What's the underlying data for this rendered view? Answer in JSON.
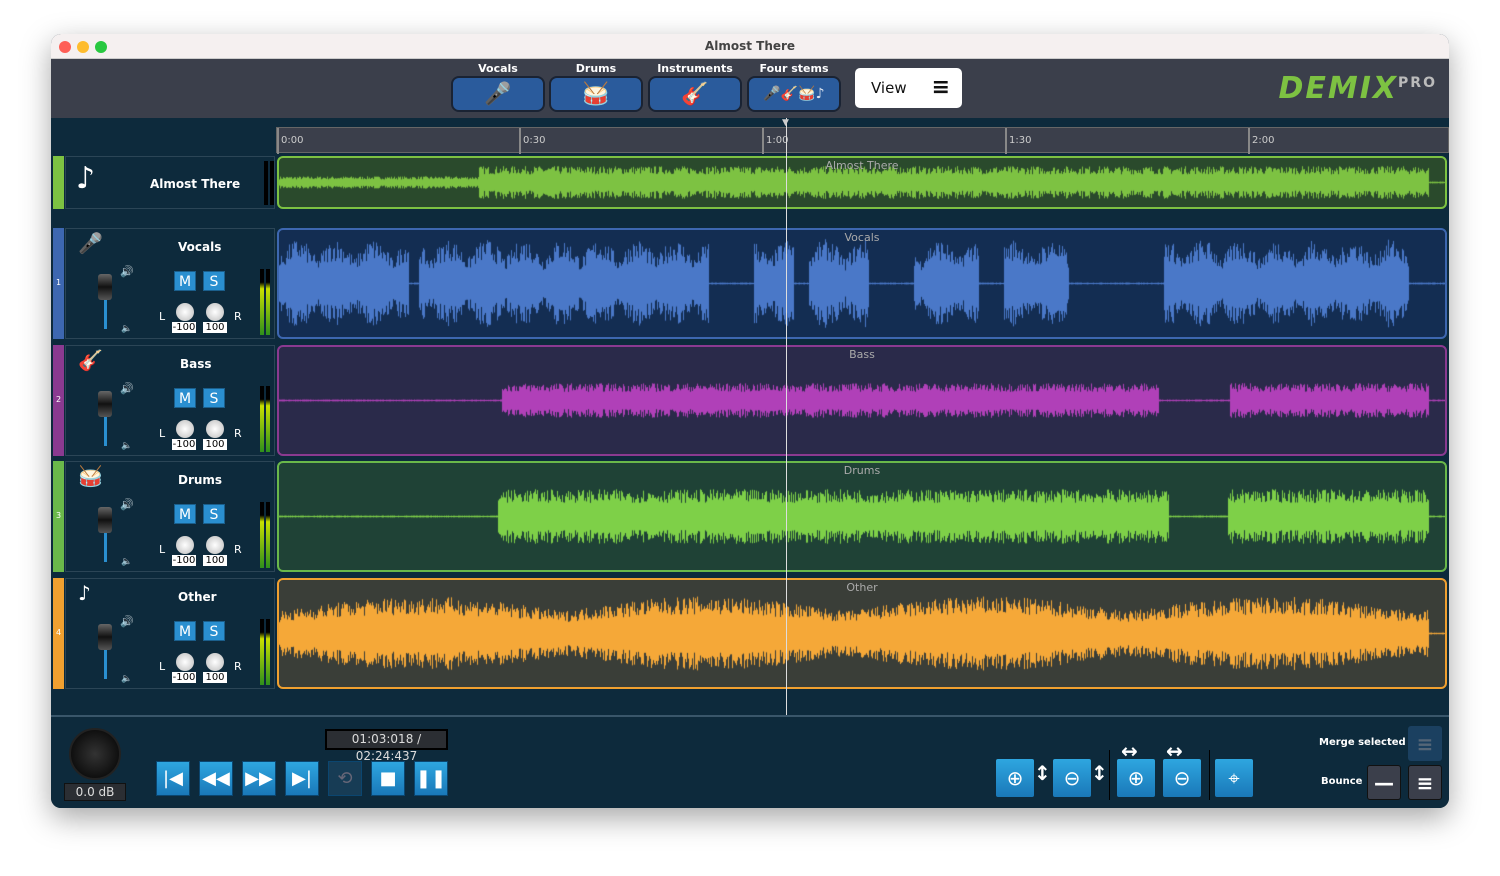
{
  "window": {
    "title": "Almost There"
  },
  "toolbar": {
    "stems": [
      {
        "label": "Vocals",
        "icon": "microphone-icon",
        "glyph": "🎤"
      },
      {
        "label": "Drums",
        "icon": "drum-kit-icon",
        "glyph": "🥁"
      },
      {
        "label": "Instruments",
        "icon": "guitar-icon",
        "glyph": "🎸"
      },
      {
        "label": "Four stems",
        "icon": "four-stems-icon",
        "glyph": "🎤🎸🥁♪"
      }
    ],
    "view_label": "View",
    "view_icon": "≡",
    "logo": "DEMIX",
    "logo_suffix": "PRO"
  },
  "ruler": {
    "ticks": [
      "0:00",
      "0:30",
      "1:00",
      "1:30",
      "2:00"
    ]
  },
  "master": {
    "name": "Almost There",
    "lane_label": "Almost There",
    "icon": "♪",
    "color": "#7dc242"
  },
  "tracks": [
    {
      "num": "1",
      "name": "Vocals",
      "icon": "🎤",
      "color": "#3d67b0",
      "lane_bg": "#132d52",
      "wave": "#4a78c8",
      "mute": "M",
      "solo": "S",
      "pan_l": "-100",
      "pan_r": "100"
    },
    {
      "num": "2",
      "name": "Bass",
      "icon": "🎸",
      "color": "#8a3a90",
      "lane_bg": "#2a2a4a",
      "wave": "#b040b8",
      "mute": "M",
      "solo": "S",
      "pan_l": "-100",
      "pan_r": "100"
    },
    {
      "num": "3",
      "name": "Drums",
      "icon": "🥁",
      "color": "#6ab84a",
      "lane_bg": "#1f4236",
      "wave": "#7ed048",
      "mute": "M",
      "solo": "S",
      "pan_l": "-100",
      "pan_r": "100"
    },
    {
      "num": "4",
      "name": "Other",
      "icon": "♪",
      "color": "#f0a030",
      "lane_bg": "#3a3e38",
      "wave": "#f5a838",
      "mute": "M",
      "solo": "S",
      "pan_l": "-100",
      "pan_r": "100"
    }
  ],
  "labels": {
    "L": "L",
    "R": "R"
  },
  "transport": {
    "volume": "0.0 dB",
    "time": "01:03:018 / 02:24:437",
    "playhead_time": "1:03"
  },
  "right_panel": {
    "merge_label": "Merge selected",
    "bounce_label": "Bounce"
  }
}
